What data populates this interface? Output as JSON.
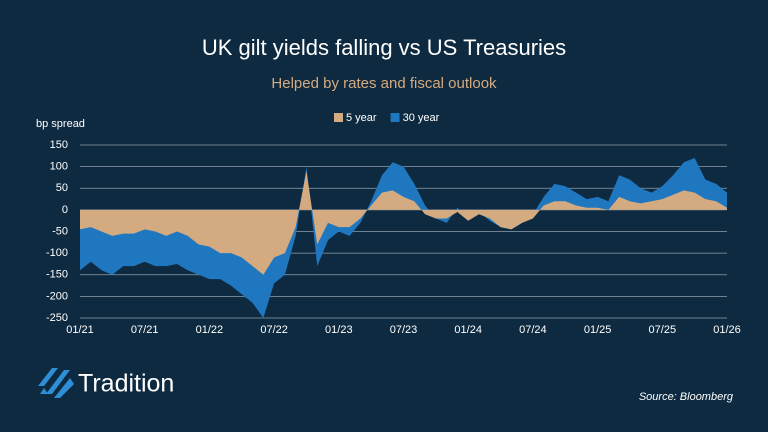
{
  "chart_data": {
    "type": "area",
    "title": "UK gilt yields falling vs US Treasuries",
    "subtitle": "Helped by rates and fiscal outlook",
    "y_label": "bp spread",
    "source": "Source: Bloomberg",
    "logo": "Tradition",
    "x": [
      "01/21",
      "02/21",
      "03/21",
      "04/21",
      "05/21",
      "06/21",
      "07/21",
      "08/21",
      "09/21",
      "10/21",
      "11/21",
      "12/21",
      "01/22",
      "02/22",
      "03/22",
      "04/22",
      "05/22",
      "06/22",
      "07/22",
      "08/22",
      "09/22",
      "10/22",
      "11/22",
      "12/22",
      "01/23",
      "02/23",
      "03/23",
      "04/23",
      "05/23",
      "06/23",
      "07/23",
      "08/23",
      "09/23",
      "10/23",
      "11/23",
      "12/23",
      "01/24",
      "02/24",
      "03/24",
      "04/24",
      "05/24",
      "06/24",
      "07/24",
      "08/24",
      "09/24",
      "10/24",
      "11/24",
      "12/24",
      "01/25",
      "02/25",
      "03/25",
      "04/25",
      "05/25",
      "06/25",
      "07/25",
      "08/25",
      "09/25",
      "10/25",
      "11/25",
      "12/25",
      "01/26"
    ],
    "series": [
      {
        "name": "30 year",
        "color": "#1f77c0",
        "values": [
          -140,
          -120,
          -140,
          -150,
          -130,
          -130,
          -120,
          -130,
          -130,
          -125,
          -140,
          -150,
          -160,
          -160,
          -175,
          -195,
          -215,
          -250,
          -170,
          -150,
          -60,
          100,
          -130,
          -70,
          -50,
          -60,
          -30,
          20,
          80,
          110,
          100,
          60,
          10,
          -20,
          -30,
          5,
          -20,
          -5,
          -25,
          -40,
          -45,
          -30,
          -10,
          30,
          60,
          55,
          40,
          25,
          30,
          20,
          80,
          70,
          50,
          40,
          55,
          80,
          110,
          120,
          70,
          60,
          40
        ]
      },
      {
        "name": "5 year",
        "color": "#d4aa80",
        "values": [
          -45,
          -40,
          -50,
          -60,
          -55,
          -55,
          -45,
          -50,
          -60,
          -50,
          -60,
          -80,
          -85,
          -100,
          -100,
          -110,
          -130,
          -150,
          -110,
          -100,
          -40,
          90,
          -80,
          -30,
          -40,
          -40,
          -20,
          10,
          40,
          45,
          30,
          20,
          -10,
          -20,
          -20,
          -5,
          -25,
          -10,
          -20,
          -40,
          -45,
          -30,
          -20,
          10,
          20,
          20,
          10,
          5,
          5,
          0,
          30,
          20,
          15,
          20,
          25,
          35,
          45,
          40,
          25,
          20,
          5
        ]
      }
    ],
    "legend_order": [
      "5 year",
      "30 year"
    ],
    "ylim": [
      -250,
      150
    ],
    "yticks": [
      -250,
      -200,
      -150,
      -100,
      -50,
      0,
      50,
      100,
      150
    ],
    "xticks": [
      "01/21",
      "07/21",
      "01/22",
      "07/22",
      "01/23",
      "07/23",
      "01/24",
      "07/24",
      "01/25",
      "07/25",
      "01/26"
    ],
    "grid": true
  }
}
